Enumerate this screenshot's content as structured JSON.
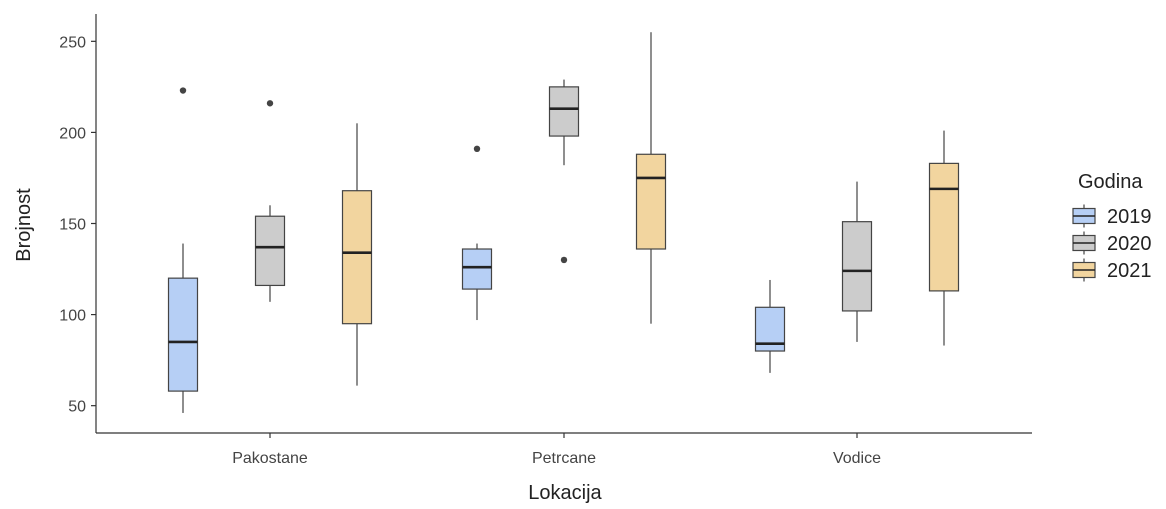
{
  "chart_data": {
    "type": "boxplot",
    "xlabel": "Lokacija",
    "ylabel": "Brojnost",
    "categories": [
      "Pakostane",
      "Petrcane",
      "Vodice"
    ],
    "ylim": [
      35,
      265
    ],
    "yticks": [
      50,
      100,
      150,
      200,
      250
    ],
    "grid": false,
    "legend": {
      "title": "Godina",
      "position": "right"
    },
    "series": [
      {
        "name": "2019",
        "color": "#b6cff5",
        "boxes": [
          {
            "category": "Pakostane",
            "whisker_low": 46,
            "q1": 58,
            "median": 85,
            "q3": 120,
            "whisker_high": 139,
            "outliers": [
              223
            ]
          },
          {
            "category": "Petrcane",
            "whisker_low": 97,
            "q1": 114,
            "median": 126,
            "q3": 136,
            "whisker_high": 139,
            "outliers": [
              191
            ]
          },
          {
            "category": "Vodice",
            "whisker_low": 68,
            "q1": 80,
            "median": 84,
            "q3": 104,
            "whisker_high": 119,
            "outliers": []
          }
        ]
      },
      {
        "name": "2020",
        "color": "#cccccc",
        "boxes": [
          {
            "category": "Pakostane",
            "whisker_low": 107,
            "q1": 116,
            "median": 137,
            "q3": 154,
            "whisker_high": 160,
            "outliers": [
              216
            ]
          },
          {
            "category": "Petrcane",
            "whisker_low": 182,
            "q1": 198,
            "median": 213,
            "q3": 225,
            "whisker_high": 229,
            "outliers": [
              130
            ]
          },
          {
            "category": "Vodice",
            "whisker_low": 85,
            "q1": 102,
            "median": 124,
            "q3": 151,
            "whisker_high": 173,
            "outliers": []
          }
        ]
      },
      {
        "name": "2021",
        "color": "#f2d59f",
        "boxes": [
          {
            "category": "Pakostane",
            "whisker_low": 61,
            "q1": 95,
            "median": 134,
            "q3": 168,
            "whisker_high": 205,
            "outliers": []
          },
          {
            "category": "Petrcane",
            "whisker_low": 95,
            "q1": 136,
            "median": 175,
            "q3": 188,
            "whisker_high": 255,
            "outliers": []
          },
          {
            "category": "Vodice",
            "whisker_low": 83,
            "q1": 113,
            "median": 169,
            "q3": 183,
            "whisker_high": 201,
            "outliers": []
          }
        ]
      }
    ]
  }
}
